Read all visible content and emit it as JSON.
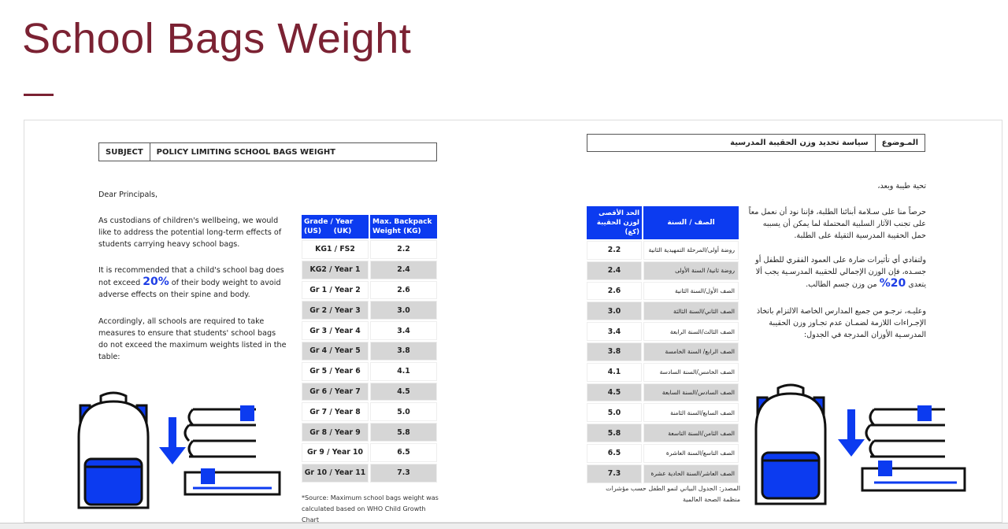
{
  "title": "School Bags Weight",
  "en": {
    "subject_label": "SUBJECT",
    "subject_value": "POLICY LIMITING SCHOOL BAGS WEIGHT",
    "greeting": "Dear Principals,",
    "para1": "As custodians of children's wellbeing, we would like to address the potential long-term effects of students carrying heavy school bags.",
    "para2_a": "It is recommended that a child's school bag does not exceed ",
    "para2_pct": "20%",
    "para2_b": " of their body weight to avoid adverse effects on their spine and body.",
    "para3": "Accordingly, all schools are required to take measures to ensure that students' school bags do not exceed the maximum weights listed in the table:",
    "table_headers": [
      "Grade / Year\n(US)     (UK)",
      "Max. Backpack Weight (KG)"
    ],
    "rows": [
      [
        "KG1 / FS2",
        "2.2"
      ],
      [
        "KG2 / Year 1",
        "2.4"
      ],
      [
        "Gr 1 / Year 2",
        "2.6"
      ],
      [
        "Gr 2 / Year 3",
        "3.0"
      ],
      [
        "Gr 3 / Year 4",
        "3.4"
      ],
      [
        "Gr 4 / Year 5",
        "3.8"
      ],
      [
        "Gr 5 / Year 6",
        "4.1"
      ],
      [
        "Gr 6 / Year 7",
        "4.5"
      ],
      [
        "Gr 7 / Year 8",
        "5.0"
      ],
      [
        "Gr 8 / Year 9",
        "5.8"
      ],
      [
        "Gr 9 / Year 10",
        "6.5"
      ],
      [
        "Gr 10 / Year 11",
        "7.3"
      ]
    ],
    "source": "*Source: Maximum school bags weight was calculated based on WHO Child Growth Chart"
  },
  "ar": {
    "subject_label": "المـوضوع",
    "subject_value": "سياسة تحديد وزن الحقيبة المدرسية",
    "greeting": "تحية طيبة وبعد،",
    "para1": "حرصاً منا على سـلامة أبنائنا الطلبة، فإننا نود أن نعمل معاً على تجنب الآثار السلبية المحتملة لما يمكن أن يسببه حمل الحقيبة المدرسية الثقيلة على الطلبة.",
    "para2_a": "ولتفادي أي تأثيرات ضارة على العمود الفقري للطفل أو جسـده، فإن الوزن الإجمالي للحقيبة المدرسـية يجب ألا يتعدى ",
    "para2_pct": "20%",
    "para2_b": " من وزن جسم الطالب.",
    "para3": "وعليـه، نرجـو من جميع المدارس الخاصة الالتزام باتخاذ الإجـراءات اللازمة لضمـان عدم تجـاوز وزن الحقيبة المدرسـية الأوزان المدرجة في الجدول:",
    "table_headers": [
      "الحد الأقصى لوزن الحقيبة (كغ)",
      "الصف / السنة"
    ],
    "rows": [
      [
        "2.2",
        "روضة أولى/المرحلة التمهيدية الثانية"
      ],
      [
        "2.4",
        "روضة ثانية/ السنة الأولى"
      ],
      [
        "2.6",
        "الصف الأول/السنة الثانية"
      ],
      [
        "3.0",
        "الصف الثاني/السنة الثالثة"
      ],
      [
        "3.4",
        "الصف الثالث/السنة الرابعة"
      ],
      [
        "3.8",
        "الصف الرابع/ السنة الخامسة"
      ],
      [
        "4.1",
        "الصف الخامس/السنة السادسة"
      ],
      [
        "4.5",
        "الصف السادس/السنة السابعة"
      ],
      [
        "5.0",
        "الصف السابع/السنة الثامنة"
      ],
      [
        "5.8",
        "الصف الثامن/السنة التاسعة"
      ],
      [
        "6.5",
        "الصف التاسع/السنة العاشرة"
      ],
      [
        "7.3",
        "الصف العاشر/السنة الحادية عشرة"
      ]
    ],
    "source": "المصدر: الجدول البياني لنمو الطفل حسب مؤشرات منظمة الصحة العالمية"
  },
  "colors": {
    "title": "#7b2233",
    "accent": "#0c3bf0",
    "row_alt": "#d6d6d6"
  }
}
